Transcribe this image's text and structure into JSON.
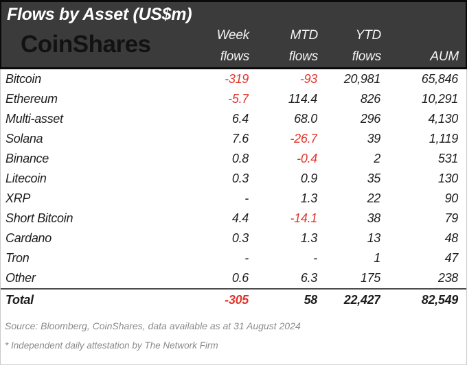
{
  "title": "Flows by Asset (US$m)",
  "logo": "CoinShares",
  "columns": {
    "week_line1": "Week",
    "week_line2": "flows",
    "mtd_line1": "MTD",
    "mtd_line2": "flows",
    "ytd_line1": "YTD",
    "ytd_line2": "flows",
    "aum": "AUM"
  },
  "table": {
    "rows": [
      {
        "asset": "Bitcoin",
        "week": "-319",
        "mtd": "-93",
        "ytd": "20,981",
        "aum": "65,846"
      },
      {
        "asset": "Ethereum",
        "week": "-5.7",
        "mtd": "114.4",
        "ytd": "826",
        "aum": "10,291"
      },
      {
        "asset": "Multi-asset",
        "week": "6.4",
        "mtd": "68.0",
        "ytd": "296",
        "aum": "4,130"
      },
      {
        "asset": "Solana",
        "week": "7.6",
        "mtd": "-26.7",
        "ytd": "39",
        "aum": "1,119"
      },
      {
        "asset": "Binance",
        "week": "0.8",
        "mtd": "-0.4",
        "ytd": "2",
        "aum": "531"
      },
      {
        "asset": "Litecoin",
        "week": "0.3",
        "mtd": "0.9",
        "ytd": "35",
        "aum": "130"
      },
      {
        "asset": "XRP",
        "week": "-",
        "mtd": "1.3",
        "ytd": "22",
        "aum": "90"
      },
      {
        "asset": "Short Bitcoin",
        "week": "4.4",
        "mtd": "-14.1",
        "ytd": "38",
        "aum": "79"
      },
      {
        "asset": "Cardano",
        "week": "0.3",
        "mtd": "1.3",
        "ytd": "13",
        "aum": "48"
      },
      {
        "asset": "Tron",
        "week": "-",
        "mtd": "-",
        "ytd": "1",
        "aum": "47"
      },
      {
        "asset": "Other",
        "week": "0.6",
        "mtd": "6.3",
        "ytd": "175",
        "aum": "238"
      }
    ],
    "total": {
      "asset": "Total",
      "week": "-305",
      "mtd": "58",
      "ytd": "22,427",
      "aum": "82,549"
    }
  },
  "footer": {
    "source": "Source: Bloomberg, CoinShares, data available as at 31 August 2024",
    "attestation": "* Independent daily attestation by The Network Firm"
  },
  "colors": {
    "header_bg": "#3b3b3b",
    "negative": "#e0352b",
    "body_text": "#1d1d1d",
    "footer_text": "#8a8a8a"
  },
  "chart_data": {
    "type": "table",
    "title": "Flows by Asset (US$m)",
    "categories": [
      "Bitcoin",
      "Ethereum",
      "Multi-asset",
      "Solana",
      "Binance",
      "Litecoin",
      "XRP",
      "Short Bitcoin",
      "Cardano",
      "Tron",
      "Other",
      "Total"
    ],
    "series": [
      {
        "name": "Week flows",
        "values": [
          -319,
          -5.7,
          6.4,
          7.6,
          0.8,
          0.3,
          null,
          4.4,
          0.3,
          null,
          0.6,
          -305
        ]
      },
      {
        "name": "MTD flows",
        "values": [
          -93,
          114.4,
          68.0,
          -26.7,
          -0.4,
          0.9,
          1.3,
          -14.1,
          1.3,
          null,
          6.3,
          58
        ]
      },
      {
        "name": "YTD flows",
        "values": [
          20981,
          826,
          296,
          39,
          2,
          35,
          22,
          38,
          13,
          1,
          175,
          22427
        ]
      },
      {
        "name": "AUM",
        "values": [
          65846,
          10291,
          4130,
          1119,
          531,
          130,
          90,
          79,
          48,
          47,
          238,
          82549
        ]
      }
    ],
    "legend_position": "none",
    "grid": false
  }
}
